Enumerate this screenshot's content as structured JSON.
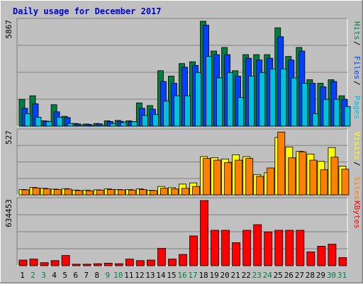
{
  "chart_data": [
    {
      "type": "bar",
      "title": "Daily usage for December 2017",
      "ylabel_max": "5867",
      "legend": [
        "Pages",
        "Files",
        "Hits"
      ],
      "legend_colors": [
        "#00c0e0",
        "#0040ff",
        "#008040"
      ],
      "categories": [
        "1",
        "2",
        "3",
        "4",
        "5",
        "6",
        "7",
        "8",
        "9",
        "10",
        "11",
        "12",
        "13",
        "14",
        "15",
        "16",
        "17",
        "18",
        "19",
        "20",
        "21",
        "22",
        "23",
        "24",
        "25",
        "26",
        "27",
        "28",
        "29",
        "30",
        "31"
      ],
      "weekend_days": [
        "2",
        "3",
        "9",
        "10",
        "16",
        "17",
        "23",
        "24",
        "30",
        "31"
      ],
      "ylim": [
        0,
        5867
      ],
      "series": [
        {
          "name": "Hits",
          "color": "#008040",
          "values": [
            1500,
            1700,
            300,
            1200,
            550,
            150,
            120,
            150,
            300,
            320,
            300,
            1300,
            1150,
            3100,
            2800,
            3500,
            3600,
            5867,
            4200,
            4400,
            3100,
            4000,
            4000,
            4000,
            5500,
            3900,
            4400,
            2600,
            2400,
            2600,
            1700
          ]
        },
        {
          "name": "Files",
          "color": "#0040ff",
          "values": [
            1000,
            1250,
            280,
            800,
            480,
            120,
            100,
            130,
            260,
            270,
            260,
            1000,
            950,
            2500,
            2400,
            3300,
            3400,
            5650,
            4000,
            4000,
            2800,
            3800,
            3700,
            3800,
            5000,
            3700,
            4200,
            2400,
            2200,
            2500,
            1500
          ]
        },
        {
          "name": "Pages",
          "color": "#00c0e0",
          "values": [
            700,
            500,
            250,
            500,
            150,
            50,
            40,
            60,
            150,
            200,
            250,
            600,
            650,
            1400,
            1700,
            1700,
            3000,
            3900,
            2700,
            3000,
            1600,
            2800,
            3000,
            3200,
            3200,
            2700,
            2400,
            700,
            1500,
            1500,
            1100
          ]
        }
      ]
    },
    {
      "type": "bar",
      "ylabel_max": "527",
      "legend": [
        "Sites",
        "Visits"
      ],
      "legend_colors": [
        "#ff8000",
        "#ffff00"
      ],
      "categories": [
        "1",
        "2",
        "3",
        "4",
        "5",
        "6",
        "7",
        "8",
        "9",
        "10",
        "11",
        "12",
        "13",
        "14",
        "15",
        "16",
        "17",
        "18",
        "19",
        "20",
        "21",
        "22",
        "23",
        "24",
        "25",
        "26",
        "27",
        "28",
        "29",
        "30",
        "31"
      ],
      "ylim": [
        0,
        527
      ],
      "series": [
        {
          "name": "Visits",
          "color": "#ffff00",
          "values": [
            45,
            62,
            55,
            48,
            52,
            40,
            40,
            42,
            50,
            45,
            45,
            50,
            38,
            70,
            60,
            90,
            100,
            320,
            310,
            300,
            335,
            320,
            170,
            185,
            480,
            400,
            365,
            340,
            280,
            395,
            240
          ]
        },
        {
          "name": "Sites",
          "color": "#ff8000",
          "values": [
            42,
            58,
            50,
            44,
            48,
            36,
            34,
            40,
            45,
            42,
            40,
            45,
            36,
            55,
            50,
            55,
            70,
            305,
            290,
            270,
            290,
            305,
            155,
            225,
            525,
            310,
            360,
            290,
            210,
            315,
            215
          ]
        }
      ]
    },
    {
      "type": "bar",
      "ylabel_max": "634453",
      "legend": [
        "KBytes"
      ],
      "legend_colors": [
        "#ff0000"
      ],
      "categories": [
        "1",
        "2",
        "3",
        "4",
        "5",
        "6",
        "7",
        "8",
        "9",
        "10",
        "11",
        "12",
        "13",
        "14",
        "15",
        "16",
        "17",
        "18",
        "19",
        "20",
        "21",
        "22",
        "23",
        "24",
        "25",
        "26",
        "27",
        "28",
        "29",
        "30",
        "31"
      ],
      "ylim": [
        0,
        634453
      ],
      "series": [
        {
          "name": "KBytes",
          "color": "#ff0000",
          "values": [
            55000,
            65000,
            30000,
            50000,
            100000,
            15000,
            15000,
            20000,
            25000,
            20000,
            65000,
            50000,
            55000,
            170000,
            65000,
            110000,
            290000,
            634453,
            345000,
            345000,
            225000,
            345000,
            400000,
            330000,
            345000,
            345000,
            345000,
            135000,
            190000,
            210000,
            80000
          ]
        }
      ]
    }
  ]
}
